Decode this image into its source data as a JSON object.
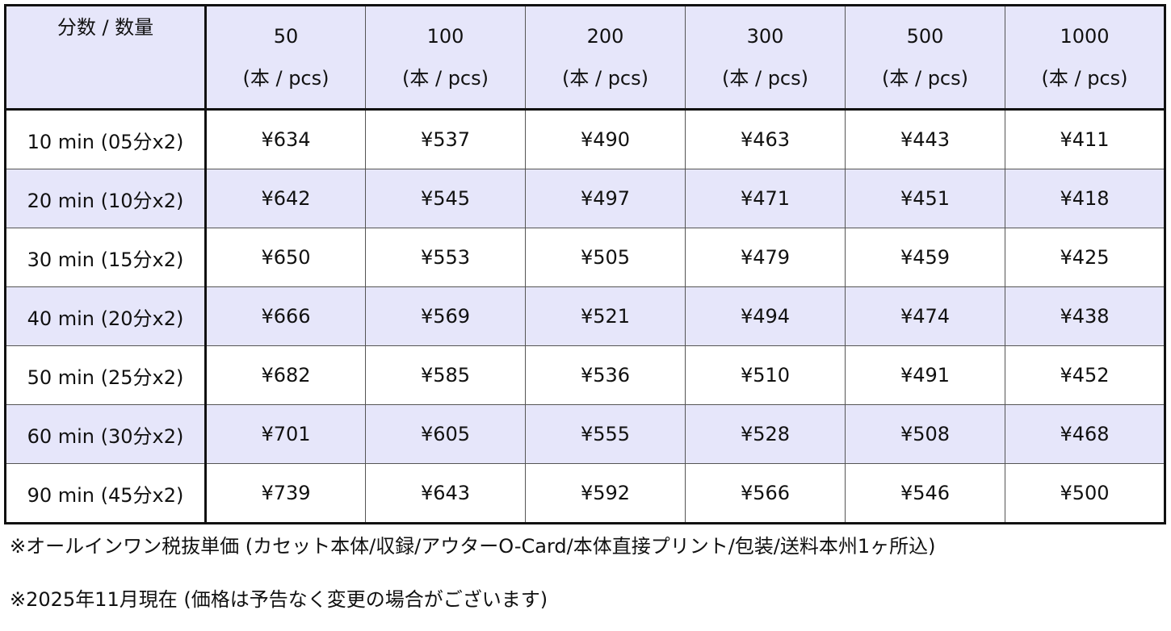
{
  "table": {
    "corner_label": "分数 / 数量",
    "unit_label": "(本 / pcs)",
    "quantities": [
      "50",
      "100",
      "200",
      "300",
      "500",
      "1000"
    ],
    "rows": [
      {
        "label": "10 min (05分x2)",
        "prices": [
          "¥634",
          "¥537",
          "¥490",
          "¥463",
          "¥443",
          "¥411"
        ]
      },
      {
        "label": "20 min (10分x2)",
        "prices": [
          "¥642",
          "¥545",
          "¥497",
          "¥471",
          "¥451",
          "¥418"
        ]
      },
      {
        "label": "30 min  (15分x2)",
        "prices": [
          "¥650",
          "¥553",
          "¥505",
          "¥479",
          "¥459",
          "¥425"
        ]
      },
      {
        "label": "40 min  (20分x2)",
        "prices": [
          "¥666",
          "¥569",
          "¥521",
          "¥494",
          "¥474",
          "¥438"
        ]
      },
      {
        "label": "50 min  (25分x2)",
        "prices": [
          "¥682",
          "¥585",
          "¥536",
          "¥510",
          "¥491",
          "¥452"
        ]
      },
      {
        "label": "60 min  (30分x2)",
        "prices": [
          "¥701",
          "¥605",
          "¥555",
          "¥528",
          "¥508",
          "¥468"
        ]
      },
      {
        "label": "90 min  (45分x2)",
        "prices": [
          "¥739",
          "¥643",
          "¥592",
          "¥566",
          "¥546",
          "¥500"
        ]
      }
    ]
  },
  "notes": [
    "※オールインワン税抜単価 (カセット本体/収録/アウターO-Card/本体直接プリント/包装/送料本州1ヶ所込)",
    "※2025年11月現在 (価格は予告なく変更の場合がございます)"
  ],
  "colors": {
    "header_bg": "#e6e6fa",
    "alt_row_bg": "#e6e6fa",
    "border": "#111111",
    "text": "#111111"
  }
}
